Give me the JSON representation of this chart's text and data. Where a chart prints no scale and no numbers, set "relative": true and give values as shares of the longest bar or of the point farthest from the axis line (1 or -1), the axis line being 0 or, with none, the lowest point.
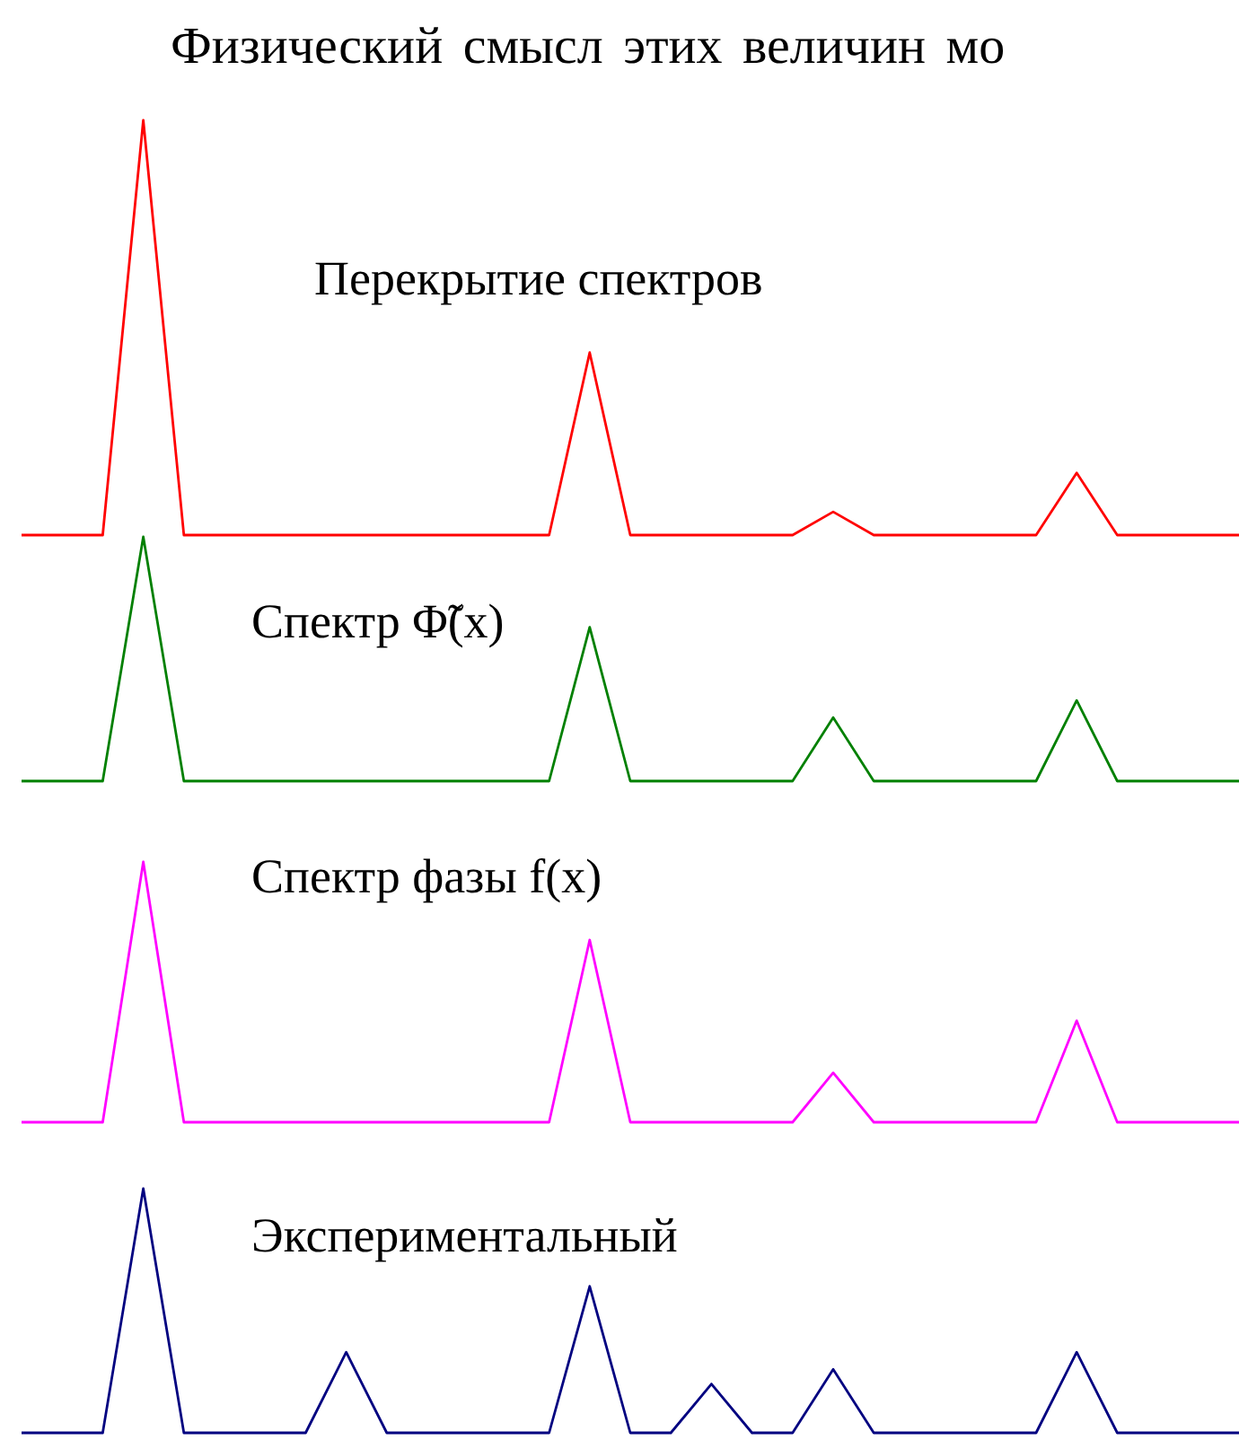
{
  "chart_data": [
    {
      "type": "line",
      "title": "Перекрытие спектров",
      "annotations": [
        "Физический смысл этих величин мо"
      ],
      "relative": true,
      "categories": [
        null,
        null,
        null,
        null,
        null,
        null,
        null,
        null,
        null,
        null,
        null,
        null,
        null,
        null,
        null,
        null,
        null,
        null,
        null,
        null,
        null,
        null,
        null,
        null,
        null,
        null,
        null,
        null,
        null,
        null,
        null
      ],
      "series": [
        {
          "color": "#ff0000",
          "values": [
            0,
            0,
            0,
            1,
            0,
            0,
            0,
            0,
            0,
            0,
            0,
            0,
            0,
            0,
            0.44,
            0,
            0,
            0,
            0,
            0,
            0.056,
            0,
            0,
            0,
            0,
            0,
            0.15,
            0,
            0,
            0,
            0
          ]
        }
      ],
      "marker": "none"
    },
    {
      "type": "line",
      "title": "Спектр Φ̃(x)",
      "relative": true,
      "categories": [
        null,
        null,
        null,
        null,
        null,
        null,
        null,
        null,
        null,
        null,
        null,
        null,
        null,
        null,
        null,
        null,
        null,
        null,
        null,
        null,
        null,
        null,
        null,
        null,
        null,
        null,
        null,
        null,
        null,
        null,
        null
      ],
      "series": [
        {
          "color": "#008000",
          "values": [
            0,
            0,
            0,
            1,
            0,
            0,
            0,
            0,
            0,
            0,
            0,
            0,
            0,
            0,
            0.63,
            0,
            0,
            0,
            0,
            0,
            0.26,
            0,
            0,
            0,
            0,
            0,
            0.33,
            0,
            0,
            0,
            0
          ]
        }
      ],
      "marker": "none"
    },
    {
      "type": "line",
      "title": "Спектр фазы f(x)",
      "relative": true,
      "categories": [
        null,
        null,
        null,
        null,
        null,
        null,
        null,
        null,
        null,
        null,
        null,
        null,
        null,
        null,
        null,
        null,
        null,
        null,
        null,
        null,
        null,
        null,
        null,
        null,
        null,
        null,
        null,
        null,
        null,
        null,
        null
      ],
      "series": [
        {
          "color": "#ff00ff",
          "values": [
            0,
            0,
            0,
            1,
            0,
            0,
            0,
            0,
            0,
            0,
            0,
            0,
            0,
            0,
            0.7,
            0,
            0,
            0,
            0,
            0,
            0.19,
            0,
            0,
            0,
            0,
            0,
            0.39,
            0,
            0,
            0,
            0
          ]
        }
      ],
      "marker": "none"
    },
    {
      "type": "line",
      "title": "Экспериментальный",
      "relative": true,
      "categories": [
        null,
        null,
        null,
        null,
        null,
        null,
        null,
        null,
        null,
        null,
        null,
        null,
        null,
        null,
        null,
        null,
        null,
        null,
        null,
        null,
        null,
        null,
        null,
        null,
        null,
        null,
        null,
        null,
        null,
        null,
        null
      ],
      "series": [
        {
          "color": "#000080",
          "values": [
            0,
            0,
            0,
            1,
            0,
            0,
            0,
            0,
            0.33,
            0,
            0,
            0,
            0,
            0,
            0.6,
            0,
            0,
            0.2,
            0,
            0,
            0.26,
            0,
            0,
            0,
            0,
            0,
            0.33,
            0,
            0,
            0,
            0
          ]
        }
      ],
      "marker": "none"
    }
  ]
}
